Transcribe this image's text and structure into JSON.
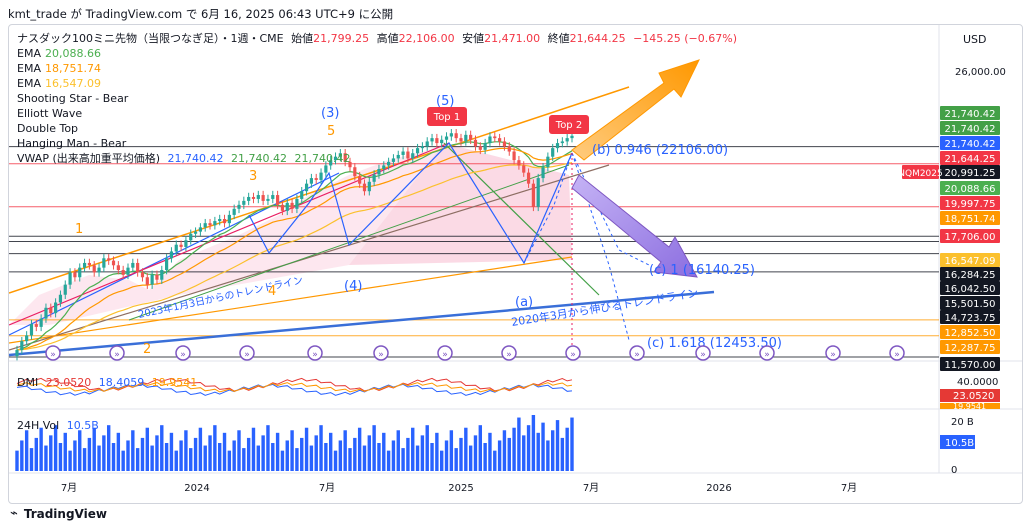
{
  "header": {
    "publish_line": "kmt_trade が TradingView.com で 6月 16, 2025 06:43 UTC+9 に公開"
  },
  "footer": {
    "brand": "TradingView"
  },
  "legend": {
    "title_name": "ナスダック100ミニ先物（当限つなぎ足）・1週・CME",
    "ohlc": [
      {
        "label": "始値",
        "value": "21,799.25"
      },
      {
        "label": "高値",
        "value": "22,106.00"
      },
      {
        "label": "安値",
        "value": "21,471.00"
      },
      {
        "label": "終値",
        "value": "21,644.25"
      }
    ],
    "change": "−145.25 (−0.67%)",
    "indicators": [
      {
        "name": "EMA",
        "value": "20,088.66",
        "color": "#4caf50"
      },
      {
        "name": "EMA",
        "value": "18,751.74",
        "color": "#ff9800"
      },
      {
        "name": "EMA",
        "value": "16,547.09",
        "color": "#fbc02d"
      },
      {
        "name": "Shooting Star - Bear",
        "value": "",
        "color": ""
      },
      {
        "name": "Elliott Wave",
        "value": "",
        "color": ""
      },
      {
        "name": "Double Top",
        "value": "",
        "color": ""
      },
      {
        "name": "Hanging Man - Bear",
        "value": "",
        "color": ""
      }
    ],
    "vwap": {
      "name": "VWAP (出来高加重平均価格)",
      "values": [
        "21,740.42",
        "21,740.42",
        "21,740.42"
      ]
    }
  },
  "chart_data": {
    "type": "candlestick",
    "timeframe": "1W",
    "symbol": "NQM2025",
    "price_axis_currency": "USD",
    "y_tick_labels": [
      "26,000.00",
      "20,991.25",
      "19,997.75",
      "16,284.25",
      "16,042.50",
      "15,501.50",
      "14,723.75",
      "12,852.50",
      "12,287.75",
      "11,570.00"
    ],
    "x_tick_labels": [
      "7月",
      "2024",
      "7月",
      "2025",
      "7月",
      "2026",
      "7月"
    ],
    "price_tags": [
      {
        "value": "21,740.42",
        "color": "#43a047"
      },
      {
        "value": "21,740.42",
        "color": "#43a047"
      },
      {
        "value": "21,740.42",
        "color": "#2962ff"
      },
      {
        "value": "21,644.25",
        "color": "#f23645"
      },
      {
        "value": "20,991.25",
        "color": "#131722"
      },
      {
        "value": "20,088.66",
        "color": "#4caf50"
      },
      {
        "value": "19,997.75",
        "color": "#f23645"
      },
      {
        "value": "18,751.74",
        "color": "#ff9800"
      },
      {
        "value": "17,706.00",
        "color": "#f23645"
      },
      {
        "value": "16,547.09",
        "color": "#fbc02d"
      },
      {
        "value": "16,284.25",
        "color": "#131722"
      },
      {
        "value": "16,042.50",
        "color": "#131722"
      },
      {
        "value": "15,501.50",
        "color": "#131722"
      },
      {
        "value": "14,723.75",
        "color": "#131722"
      },
      {
        "value": "12,852.50",
        "color": "#ff9800"
      },
      {
        "value": "12,287.75",
        "color": "#ff9800"
      },
      {
        "value": "11,570.00",
        "color": "#131722"
      }
    ],
    "symbol_tag": "NQM2025",
    "key_prices": {
      "open": 21799.25,
      "high": 22106.0,
      "low": 21471.0,
      "close": 21644.25
    },
    "wave_labels": [
      {
        "text": "1",
        "color": "#ff9800"
      },
      {
        "text": "2",
        "color": "#ff9800"
      },
      {
        "text": "3",
        "color": "#ff9800"
      },
      {
        "text": "4",
        "color": "#ff9800"
      },
      {
        "text": "5",
        "color": "#ff9800"
      },
      {
        "text": "(3)",
        "color": "#2962ff"
      },
      {
        "text": "(4)",
        "color": "#2962ff"
      },
      {
        "text": "(5)",
        "color": "#2962ff"
      },
      {
        "text": "(a)",
        "color": "#2962ff"
      },
      {
        "text": "(b) 0.946 (22106.00)",
        "color": "#2962ff"
      },
      {
        "text": "(c) 1 (16140.25)",
        "color": "#2962ff"
      },
      {
        "text": "(c) 1.618 (12453.50)",
        "color": "#2962ff"
      }
    ],
    "annotations": [
      "Top 1",
      "Top 2",
      "2023年1月3日からのトレンドライン",
      "2020年3月から伸びるトレンドライン"
    ],
    "closes": [
      11800,
      12100,
      12300,
      12700,
      12600,
      12900,
      13300,
      13100,
      13500,
      13800,
      14200,
      14700,
      14500,
      14900,
      15100,
      15000,
      14700,
      14900,
      15300,
      15200,
      15000,
      14800,
      14600,
      14900,
      15100,
      14700,
      14500,
      14200,
      14600,
      14400,
      14800,
      15300,
      15600,
      15900,
      15800,
      16100,
      16400,
      16500,
      16700,
      16900,
      16800,
      17000,
      17100,
      16900,
      17300,
      17600,
      17800,
      18000,
      18200,
      18100,
      18300,
      18000,
      18100,
      18300,
      17800,
      17500,
      17900,
      17600,
      18100,
      18500,
      18900,
      19200,
      19100,
      19500,
      19900,
      20200,
      20400,
      20600,
      20100,
      19800,
      19300,
      18900,
      18500,
      19000,
      19400,
      19700,
      19900,
      20100,
      20300,
      20500,
      20700,
      20300,
      20600,
      20900,
      21000,
      21300,
      21500,
      21200,
      21400,
      21600,
      21800,
      21500,
      21300,
      21700,
      21400,
      21000,
      20800,
      21200,
      21600,
      21500,
      21300,
      21000,
      20700,
      20200,
      19900,
      19500,
      18900,
      17700,
      19200,
      19800,
      20400,
      20900,
      21200,
      21300,
      21500,
      21644
    ],
    "dmi": {
      "label": "DMI",
      "values": [
        "23.0520",
        "18.4059",
        "19.9541"
      ],
      "colors": [
        "#e53935",
        "#2962ff",
        "#ff9800"
      ],
      "axis_ticks": [
        "40.0000"
      ],
      "tags": [
        "23.0520",
        "19.9541"
      ]
    },
    "volume": {
      "label": "24H Vol",
      "last": "10.5B",
      "axis_ticks": [
        "20 B",
        "0"
      ],
      "tag": "10.5B"
    }
  }
}
